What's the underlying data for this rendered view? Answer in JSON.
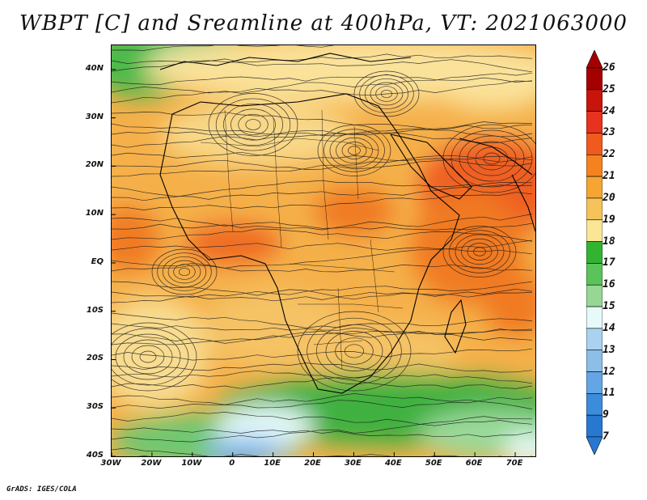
{
  "title": "WBPT [C] and Sreamline at 400hPa, VT: 2021063000",
  "credit": "GrADS: IGES/COLA",
  "map": {
    "lon_range": [
      -30,
      75
    ],
    "lat_range": [
      -40,
      45
    ],
    "lat_ticks": [
      {
        "value": 40,
        "label": "40N"
      },
      {
        "value": 30,
        "label": "30N"
      },
      {
        "value": 20,
        "label": "20N"
      },
      {
        "value": 10,
        "label": "10N"
      },
      {
        "value": 0,
        "label": "EQ"
      },
      {
        "value": -10,
        "label": "10S"
      },
      {
        "value": -20,
        "label": "20S"
      },
      {
        "value": -30,
        "label": "30S"
      },
      {
        "value": -40,
        "label": "40S"
      }
    ],
    "lon_ticks": [
      {
        "value": -30,
        "label": "30W"
      },
      {
        "value": -20,
        "label": "20W"
      },
      {
        "value": -10,
        "label": "10W"
      },
      {
        "value": 0,
        "label": "0"
      },
      {
        "value": 10,
        "label": "10E"
      },
      {
        "value": 20,
        "label": "20E"
      },
      {
        "value": 30,
        "label": "30E"
      },
      {
        "value": 40,
        "label": "40E"
      },
      {
        "value": 50,
        "label": "50E"
      },
      {
        "value": 60,
        "label": "60E"
      },
      {
        "value": 70,
        "label": "70E"
      }
    ]
  },
  "colorbar": {
    "labels": [
      "26",
      "25",
      "24",
      "23",
      "22",
      "21",
      "20",
      "19",
      "18",
      "17",
      "16",
      "15",
      "14",
      "13",
      "12",
      "11",
      "9",
      "7"
    ],
    "colors": [
      "#a50000",
      "#c8140a",
      "#e6321e",
      "#f05a1e",
      "#f5821e",
      "#f5a532",
      "#f5c35a",
      "#fae696",
      "#32b432",
      "#5ac35a",
      "#96d796",
      "#e6fafa",
      "#aad2f0",
      "#8cbee6",
      "#64a5e6",
      "#3c8cdc",
      "#2878d2"
    ],
    "top_color": "#a50000",
    "bottom_color": "#2878d2"
  }
}
